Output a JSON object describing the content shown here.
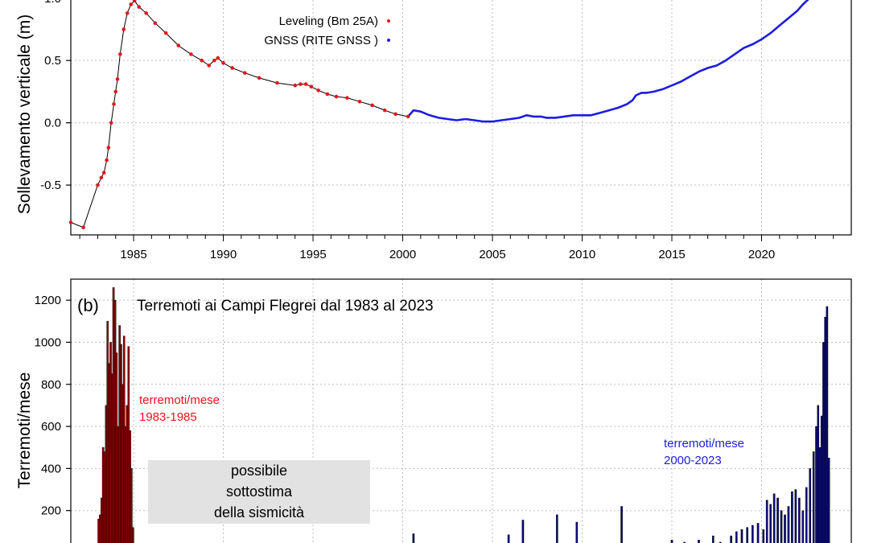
{
  "panel_a": {
    "ylabel": "Sollevamento verticale (m)",
    "legend": {
      "leveling": "Leveling (Bm 25A)",
      "gnss": "GNSS (RITE GNSS )"
    }
  },
  "panel_b": {
    "panel_label": "(b)",
    "title": "Terremoti ai Campi Flegrei dal 1983 al 2023",
    "ylabel": "Terremoti/mese",
    "annot_red": [
      "terremoti/mese",
      "1983-1985"
    ],
    "annot_blue": [
      "terremoti/mese",
      "2000-2023"
    ],
    "gray_box": [
      "possibile",
      "sottostima",
      "della sismicità"
    ]
  },
  "colors": {
    "leveling": "#e8141b",
    "gnss": "#1c1ce0",
    "bars_early": "#8b0000",
    "bars_late": "#0a0a7a",
    "gray_box": "#e2e2e2"
  },
  "chart_data": [
    {
      "type": "line",
      "ylabel": "Sollevamento verticale (m)",
      "xlim": [
        1981.5,
        2025
      ],
      "ylim": [
        -0.9,
        1.05
      ],
      "x_ticks": [
        1985,
        1990,
        1995,
        2000,
        2005,
        2010,
        2015,
        2020
      ],
      "y_ticks": [
        -0.5,
        0.0,
        0.5,
        1.0
      ],
      "y_tick_labels": [
        "-0.5",
        "0.0",
        "0.5",
        "1.0"
      ],
      "grid": true,
      "legend_position": "top-center",
      "series": [
        {
          "name": "Leveling (Bm 25A)",
          "x": [
            1981.5,
            1982.2,
            1983.0,
            1983.2,
            1983.35,
            1983.5,
            1983.6,
            1983.75,
            1983.9,
            1984.0,
            1984.1,
            1984.25,
            1984.45,
            1984.65,
            1984.85,
            1985.05,
            1985.3,
            1985.7,
            1986.2,
            1986.8,
            1987.5,
            1988.2,
            1988.8,
            1989.2,
            1989.5,
            1989.7,
            1990.0,
            1990.5,
            1991.2,
            1992.0,
            1993.0,
            1994.0,
            1994.3,
            1994.6,
            1994.9,
            1995.3,
            1995.8,
            1996.3,
            1996.9,
            1997.6,
            1998.3,
            1999.0,
            1999.6,
            2000.3
          ],
          "y": [
            -0.8,
            -0.84,
            -0.5,
            -0.44,
            -0.4,
            -0.3,
            -0.2,
            0.0,
            0.15,
            0.25,
            0.35,
            0.55,
            0.75,
            0.88,
            0.95,
            0.98,
            0.93,
            0.88,
            0.8,
            0.72,
            0.62,
            0.55,
            0.5,
            0.46,
            0.5,
            0.52,
            0.48,
            0.44,
            0.4,
            0.36,
            0.32,
            0.3,
            0.31,
            0.31,
            0.29,
            0.26,
            0.23,
            0.21,
            0.2,
            0.17,
            0.14,
            0.1,
            0.07,
            0.05
          ]
        },
        {
          "name": "GNSS (RITE GNSS )",
          "x": [
            2000.3,
            2000.6,
            2001.0,
            2001.5,
            2002.0,
            2002.5,
            2003.0,
            2003.5,
            2004.0,
            2004.5,
            2005.0,
            2005.5,
            2006.0,
            2006.5,
            2006.9,
            2007.3,
            2007.7,
            2008.0,
            2008.5,
            2009.0,
            2009.5,
            2010.0,
            2010.5,
            2011.0,
            2011.5,
            2012.0,
            2012.5,
            2012.8,
            2013.0,
            2013.3,
            2013.6,
            2014.0,
            2014.5,
            2015.0,
            2015.5,
            2016.0,
            2016.5,
            2017.0,
            2017.5,
            2018.0,
            2018.5,
            2019.0,
            2019.5,
            2020.0,
            2020.5,
            2021.0,
            2021.5,
            2022.0,
            2022.3,
            2022.6,
            2022.9
          ],
          "y": [
            0.05,
            0.1,
            0.09,
            0.06,
            0.04,
            0.03,
            0.02,
            0.03,
            0.02,
            0.01,
            0.01,
            0.02,
            0.03,
            0.04,
            0.06,
            0.05,
            0.05,
            0.04,
            0.04,
            0.05,
            0.06,
            0.06,
            0.06,
            0.08,
            0.1,
            0.12,
            0.15,
            0.18,
            0.22,
            0.24,
            0.24,
            0.25,
            0.27,
            0.3,
            0.33,
            0.37,
            0.41,
            0.44,
            0.46,
            0.5,
            0.55,
            0.6,
            0.63,
            0.67,
            0.72,
            0.78,
            0.84,
            0.9,
            0.95,
            0.99,
            1.03
          ]
        }
      ]
    },
    {
      "type": "bar",
      "title": "Terremoti ai Campi Flegrei dal 1983 al 2023",
      "ylabel": "Terremoti/mese",
      "xlim": [
        1981.5,
        2025
      ],
      "ylim": [
        0,
        1300
      ],
      "y_ticks": [
        200,
        400,
        600,
        800,
        1000,
        1200
      ],
      "grid": true,
      "series": [
        {
          "name": "terremoti/mese 1983-1985",
          "x": [
            1983.05,
            1983.13,
            1983.22,
            1983.3,
            1983.38,
            1983.47,
            1983.55,
            1983.63,
            1983.72,
            1983.8,
            1983.88,
            1983.97,
            1984.05,
            1984.13,
            1984.22,
            1984.3,
            1984.38,
            1984.47,
            1984.55,
            1984.63,
            1984.72,
            1984.8,
            1984.88,
            1984.97
          ],
          "y": [
            160,
            180,
            260,
            500,
            480,
            700,
            1100,
            900,
            1000,
            850,
            1260,
            1200,
            950,
            600,
            1080,
            990,
            800,
            1030,
            600,
            700,
            980,
            580,
            400,
            120
          ]
        },
        {
          "name": "terremoti/mese 2000-2023",
          "x": [
            2000.6,
            2001.0,
            2003.0,
            2005.2,
            2005.9,
            2006.7,
            2008.6,
            2009.7,
            2012.2,
            2013.8,
            2015.0,
            2015.7,
            2016.5,
            2017.3,
            2017.7,
            2018.3,
            2018.6,
            2018.9,
            2019.2,
            2019.5,
            2019.8,
            2020.1,
            2020.3,
            2020.5,
            2020.7,
            2020.9,
            2021.1,
            2021.3,
            2021.5,
            2021.7,
            2021.9,
            2022.1,
            2022.3,
            2022.5,
            2022.7,
            2022.9,
            2023.05,
            2023.15,
            2023.25,
            2023.35,
            2023.45,
            2023.55,
            2023.65,
            2023.75
          ],
          "y": [
            90,
            40,
            30,
            40,
            85,
            155,
            180,
            145,
            220,
            40,
            60,
            50,
            60,
            80,
            50,
            80,
            100,
            110,
            120,
            130,
            140,
            110,
            250,
            230,
            280,
            260,
            200,
            180,
            220,
            290,
            300,
            260,
            200,
            310,
            400,
            480,
            600,
            700,
            500,
            650,
            1000,
            1120,
            1170,
            450
          ]
        }
      ]
    }
  ]
}
